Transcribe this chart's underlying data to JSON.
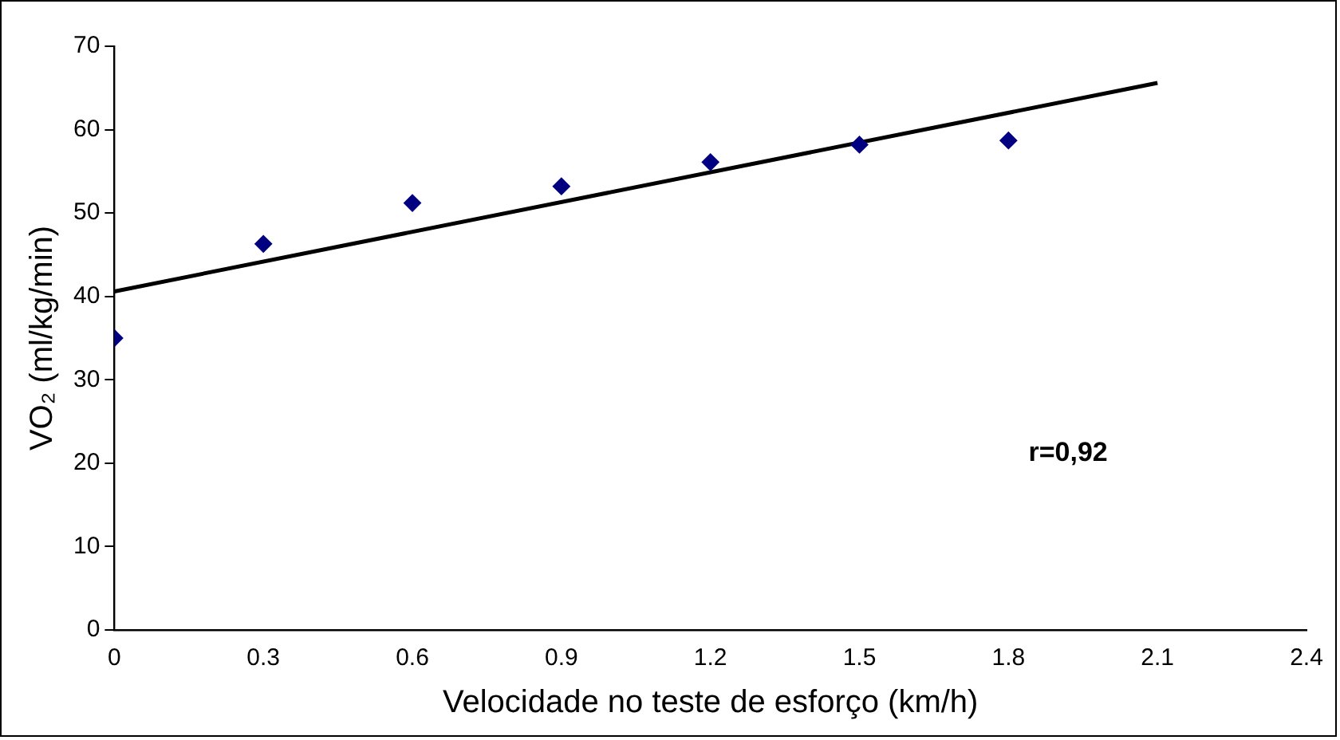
{
  "chart_data": {
    "type": "scatter",
    "xlabel": "Velocidade no teste de esforço (km/h)",
    "ylabel": "VO₂ (ml/kg/min)",
    "x": [
      0,
      0.3,
      0.6,
      0.9,
      1.2,
      1.5,
      1.8
    ],
    "series": [
      {
        "color": "#000080",
        "marker": "diamond",
        "values": [
          35,
          46.3,
          51.2,
          53.2,
          56.1,
          58.2,
          58.7
        ]
      },
      {
        "type": "line",
        "color": "#000000",
        "marker": "none",
        "x": [
          0,
          2.1
        ],
        "values": [
          40.6,
          65.6
        ]
      }
    ],
    "xlim": [
      0,
      2.4
    ],
    "xticks": [
      0,
      0.3,
      0.6,
      0.9,
      1.2,
      1.5,
      1.8,
      2.1,
      2.4
    ],
    "ylim": [
      0,
      70
    ],
    "yticks": [
      0,
      10,
      20,
      30,
      40,
      50,
      60,
      70
    ],
    "grid": false,
    "legend": false,
    "annotations": [
      "r=0,92"
    ]
  }
}
